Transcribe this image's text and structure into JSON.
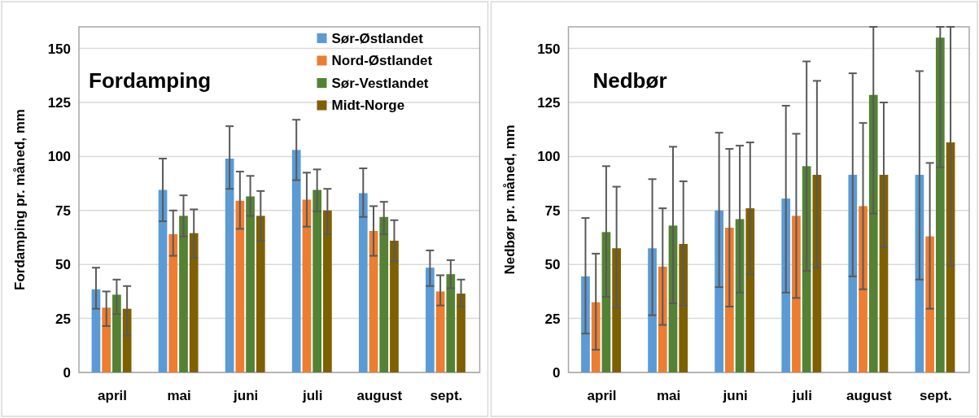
{
  "chart_data": [
    {
      "type": "bar",
      "title": "Fordamping",
      "ylabel": "Fordamping pr. måned, mm",
      "categories": [
        "april",
        "mai",
        "juni",
        "juli",
        "august",
        "sept."
      ],
      "ylim": [
        0,
        160
      ],
      "yticks": [
        0,
        25,
        50,
        75,
        100,
        125,
        150
      ],
      "grid": "y",
      "legend": "top right",
      "series": [
        {
          "name": "Sør-Østlandet",
          "color": "#5b9bd5",
          "values": [
            38.5,
            84.5,
            99,
            103,
            83,
            48.5
          ],
          "errors": [
            [
              29.5,
              48.5
            ],
            [
              70,
              99
            ],
            [
              85,
              114
            ],
            [
              89,
              117
            ],
            [
              72,
              94.5
            ],
            [
              40,
              56.5
            ]
          ]
        },
        {
          "name": "Nord-Østlandet",
          "color": "#ed7d31",
          "values": [
            30,
            64,
            79.5,
            80,
            65.5,
            37.5
          ],
          "errors": [
            [
              21.5,
              37.5
            ],
            [
              54,
              75
            ],
            [
              66.5,
              93
            ],
            [
              67.5,
              92.5
            ],
            [
              54,
              77
            ],
            [
              31,
              45
            ]
          ]
        },
        {
          "name": "Sør-Vestlandet",
          "color": "#548235",
          "values": [
            36,
            72.5,
            81.5,
            84.5,
            72,
            45.5
          ],
          "errors": [
            [
              27,
              43
            ],
            [
              63,
              82
            ],
            [
              72.5,
              91
            ],
            [
              74.5,
              94
            ],
            [
              64,
              79
            ],
            [
              39,
              52
            ]
          ]
        },
        {
          "name": "Midt-Norge",
          "color": "#7f6000",
          "values": [
            29.5,
            64.5,
            72.5,
            75,
            61,
            36.5
          ],
          "errors": [
            [
              17,
              40
            ],
            [
              53,
              75.5
            ],
            [
              61,
              84
            ],
            [
              64,
              85
            ],
            [
              51.5,
              70.5
            ],
            [
              30.5,
              43
            ]
          ]
        }
      ]
    },
    {
      "type": "bar",
      "title": "Nedbør",
      "ylabel": "Nedbør pr. måned, mm",
      "categories": [
        "april",
        "mai",
        "juni",
        "juli",
        "august",
        "sept."
      ],
      "ylim": [
        0,
        160
      ],
      "yticks": [
        0,
        25,
        50,
        75,
        100,
        125,
        150
      ],
      "grid": "y",
      "series": [
        {
          "color": "#5b9bd5",
          "values": [
            44.5,
            57.5,
            75,
            80.5,
            91.5,
            91.5
          ],
          "errors": [
            [
              18,
              71.5
            ],
            [
              26.5,
              89.5
            ],
            [
              39.5,
              111
            ],
            [
              37,
              123.5
            ],
            [
              44.5,
              138.5
            ],
            [
              43,
              139.5
            ]
          ]
        },
        {
          "color": "#ed7d31",
          "values": [
            32.5,
            49,
            67,
            72.5,
            77,
            63
          ],
          "errors": [
            [
              10.5,
              55
            ],
            [
              22,
              76
            ],
            [
              30.5,
              103.5
            ],
            [
              34.5,
              110.5
            ],
            [
              38.5,
              115.5
            ],
            [
              29.5,
              97
            ]
          ]
        },
        {
          "color": "#548235",
          "values": [
            65,
            68,
            71,
            95.5,
            128.5,
            155
          ],
          "errors": [
            [
              35,
              95.5
            ],
            [
              32,
              104.5
            ],
            [
              37,
              105
            ],
            [
              47,
              144
            ],
            [
              73.5,
              160
            ],
            [
              95,
              160
            ]
          ]
        },
        {
          "color": "#7f6000",
          "values": [
            57.5,
            59.5,
            76,
            91.5,
            91.5,
            106.5
          ],
          "errors": [
            [
              30,
              86
            ],
            [
              31,
              88.5
            ],
            [
              45.5,
              106.5
            ],
            [
              48.5,
              135
            ],
            [
              58,
              125
            ],
            [
              49.5,
              160
            ]
          ]
        }
      ]
    }
  ]
}
